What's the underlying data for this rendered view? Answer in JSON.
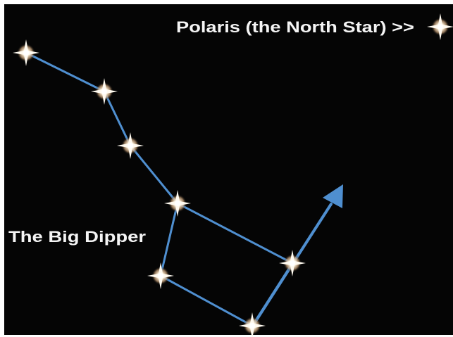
{
  "labels": {
    "polaris": "Polaris (the North Star) >>",
    "big_dipper": "The Big Dipper"
  }
}
